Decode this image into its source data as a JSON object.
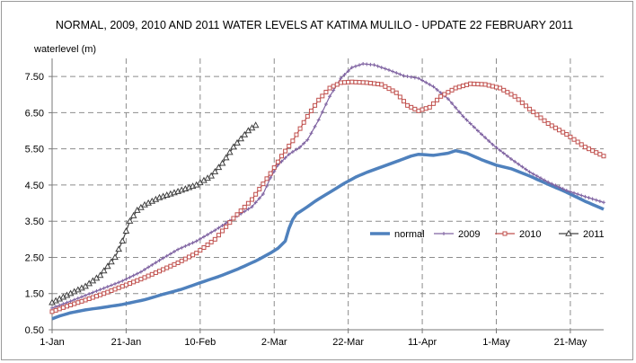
{
  "chart_data": {
    "type": "line",
    "title": "NORMAL, 2009, 2010 AND 2011  WATER LEVELS AT KATIMA MULILO - UPDATE  22 FEBRUARY 2011",
    "ylabel": "waterlevel (m)",
    "xlabel": "",
    "x_unit": "day of year (1 = 1-Jan)",
    "xlim": [
      1,
      150
    ],
    "ylim": [
      0.5,
      8.0
    ],
    "yticks": [
      0.5,
      1.5,
      2.5,
      3.5,
      4.5,
      5.5,
      6.5,
      7.5
    ],
    "ytick_labels": [
      "0.50",
      "1.50",
      "2.50",
      "3.50",
      "4.50",
      "5.50",
      "6.50",
      "7.50"
    ],
    "xticks": [
      1,
      21,
      41,
      61,
      81,
      101,
      121,
      141
    ],
    "xtick_labels": [
      "1-Jan",
      "21-Jan",
      "10-Feb",
      "2-Mar",
      "22-Mar",
      "11-Apr",
      "1-May",
      "21-May"
    ],
    "grid": "both-dashed",
    "legend_position": "right-middle",
    "series": [
      {
        "name": "normal",
        "color": "#4f81bd",
        "marker": "none",
        "points": [
          [
            1,
            0.8
          ],
          [
            3,
            0.88
          ],
          [
            6,
            0.97
          ],
          [
            10,
            1.05
          ],
          [
            15,
            1.12
          ],
          [
            20,
            1.2
          ],
          [
            26,
            1.33
          ],
          [
            31,
            1.48
          ],
          [
            36,
            1.62
          ],
          [
            41,
            1.8
          ],
          [
            46,
            1.97
          ],
          [
            51,
            2.17
          ],
          [
            56,
            2.4
          ],
          [
            60,
            2.62
          ],
          [
            62,
            2.75
          ],
          [
            64,
            2.95
          ],
          [
            65,
            3.3
          ],
          [
            66,
            3.55
          ],
          [
            67,
            3.7
          ],
          [
            70,
            3.9
          ],
          [
            72,
            4.05
          ],
          [
            76,
            4.3
          ],
          [
            80,
            4.55
          ],
          [
            83,
            4.72
          ],
          [
            86,
            4.85
          ],
          [
            90,
            5.0
          ],
          [
            94,
            5.15
          ],
          [
            98,
            5.3
          ],
          [
            100,
            5.35
          ],
          [
            104,
            5.32
          ],
          [
            108,
            5.38
          ],
          [
            110,
            5.45
          ],
          [
            113,
            5.38
          ],
          [
            117,
            5.2
          ],
          [
            121,
            5.05
          ],
          [
            125,
            4.95
          ],
          [
            130,
            4.75
          ],
          [
            135,
            4.52
          ],
          [
            140,
            4.3
          ],
          [
            145,
            4.05
          ],
          [
            150,
            3.83
          ]
        ]
      },
      {
        "name": "2009",
        "color": "#8064a2",
        "marker": "plus",
        "points": [
          [
            1,
            1.1
          ],
          [
            5,
            1.25
          ],
          [
            10,
            1.45
          ],
          [
            15,
            1.65
          ],
          [
            20,
            1.85
          ],
          [
            25,
            2.1
          ],
          [
            30,
            2.42
          ],
          [
            35,
            2.72
          ],
          [
            40,
            2.95
          ],
          [
            45,
            3.25
          ],
          [
            50,
            3.58
          ],
          [
            55,
            3.9
          ],
          [
            58,
            4.25
          ],
          [
            60,
            4.7
          ],
          [
            62,
            5.05
          ],
          [
            65,
            5.35
          ],
          [
            68,
            5.55
          ],
          [
            70,
            5.75
          ],
          [
            73,
            6.3
          ],
          [
            76,
            6.95
          ],
          [
            79,
            7.45
          ],
          [
            82,
            7.75
          ],
          [
            85,
            7.85
          ],
          [
            88,
            7.82
          ],
          [
            92,
            7.68
          ],
          [
            96,
            7.52
          ],
          [
            100,
            7.45
          ],
          [
            104,
            7.22
          ],
          [
            108,
            6.88
          ],
          [
            112,
            6.4
          ],
          [
            116,
            6.0
          ],
          [
            120,
            5.62
          ],
          [
            125,
            5.22
          ],
          [
            130,
            4.86
          ],
          [
            135,
            4.58
          ],
          [
            140,
            4.35
          ],
          [
            145,
            4.18
          ],
          [
            150,
            4.02
          ]
        ]
      },
      {
        "name": "2010",
        "color": "#c0504d",
        "marker": "square",
        "points": [
          [
            1,
            1.0
          ],
          [
            5,
            1.15
          ],
          [
            10,
            1.32
          ],
          [
            15,
            1.5
          ],
          [
            20,
            1.7
          ],
          [
            25,
            1.9
          ],
          [
            30,
            2.12
          ],
          [
            35,
            2.35
          ],
          [
            40,
            2.62
          ],
          [
            45,
            3.0
          ],
          [
            50,
            3.58
          ],
          [
            55,
            4.1
          ],
          [
            60,
            4.82
          ],
          [
            63,
            5.3
          ],
          [
            66,
            5.72
          ],
          [
            70,
            6.4
          ],
          [
            73,
            6.85
          ],
          [
            76,
            7.18
          ],
          [
            79,
            7.33
          ],
          [
            82,
            7.35
          ],
          [
            86,
            7.33
          ],
          [
            90,
            7.28
          ],
          [
            94,
            7.05
          ],
          [
            97,
            6.7
          ],
          [
            100,
            6.55
          ],
          [
            103,
            6.65
          ],
          [
            106,
            6.95
          ],
          [
            110,
            7.18
          ],
          [
            114,
            7.3
          ],
          [
            118,
            7.28
          ],
          [
            122,
            7.18
          ],
          [
            126,
            6.95
          ],
          [
            130,
            6.6
          ],
          [
            135,
            6.2
          ],
          [
            140,
            5.9
          ],
          [
            145,
            5.55
          ],
          [
            150,
            5.3
          ]
        ]
      },
      {
        "name": "2011",
        "color": "#404040",
        "marker": "triangle",
        "points": [
          [
            1,
            1.25
          ],
          [
            5,
            1.45
          ],
          [
            10,
            1.7
          ],
          [
            14,
            2.0
          ],
          [
            18,
            2.5
          ],
          [
            20,
            2.95
          ],
          [
            22,
            3.5
          ],
          [
            24,
            3.8
          ],
          [
            26,
            3.95
          ],
          [
            30,
            4.15
          ],
          [
            35,
            4.32
          ],
          [
            40,
            4.5
          ],
          [
            44,
            4.75
          ],
          [
            47,
            5.1
          ],
          [
            50,
            5.55
          ],
          [
            54,
            6.0
          ],
          [
            56,
            6.15
          ]
        ]
      }
    ]
  }
}
